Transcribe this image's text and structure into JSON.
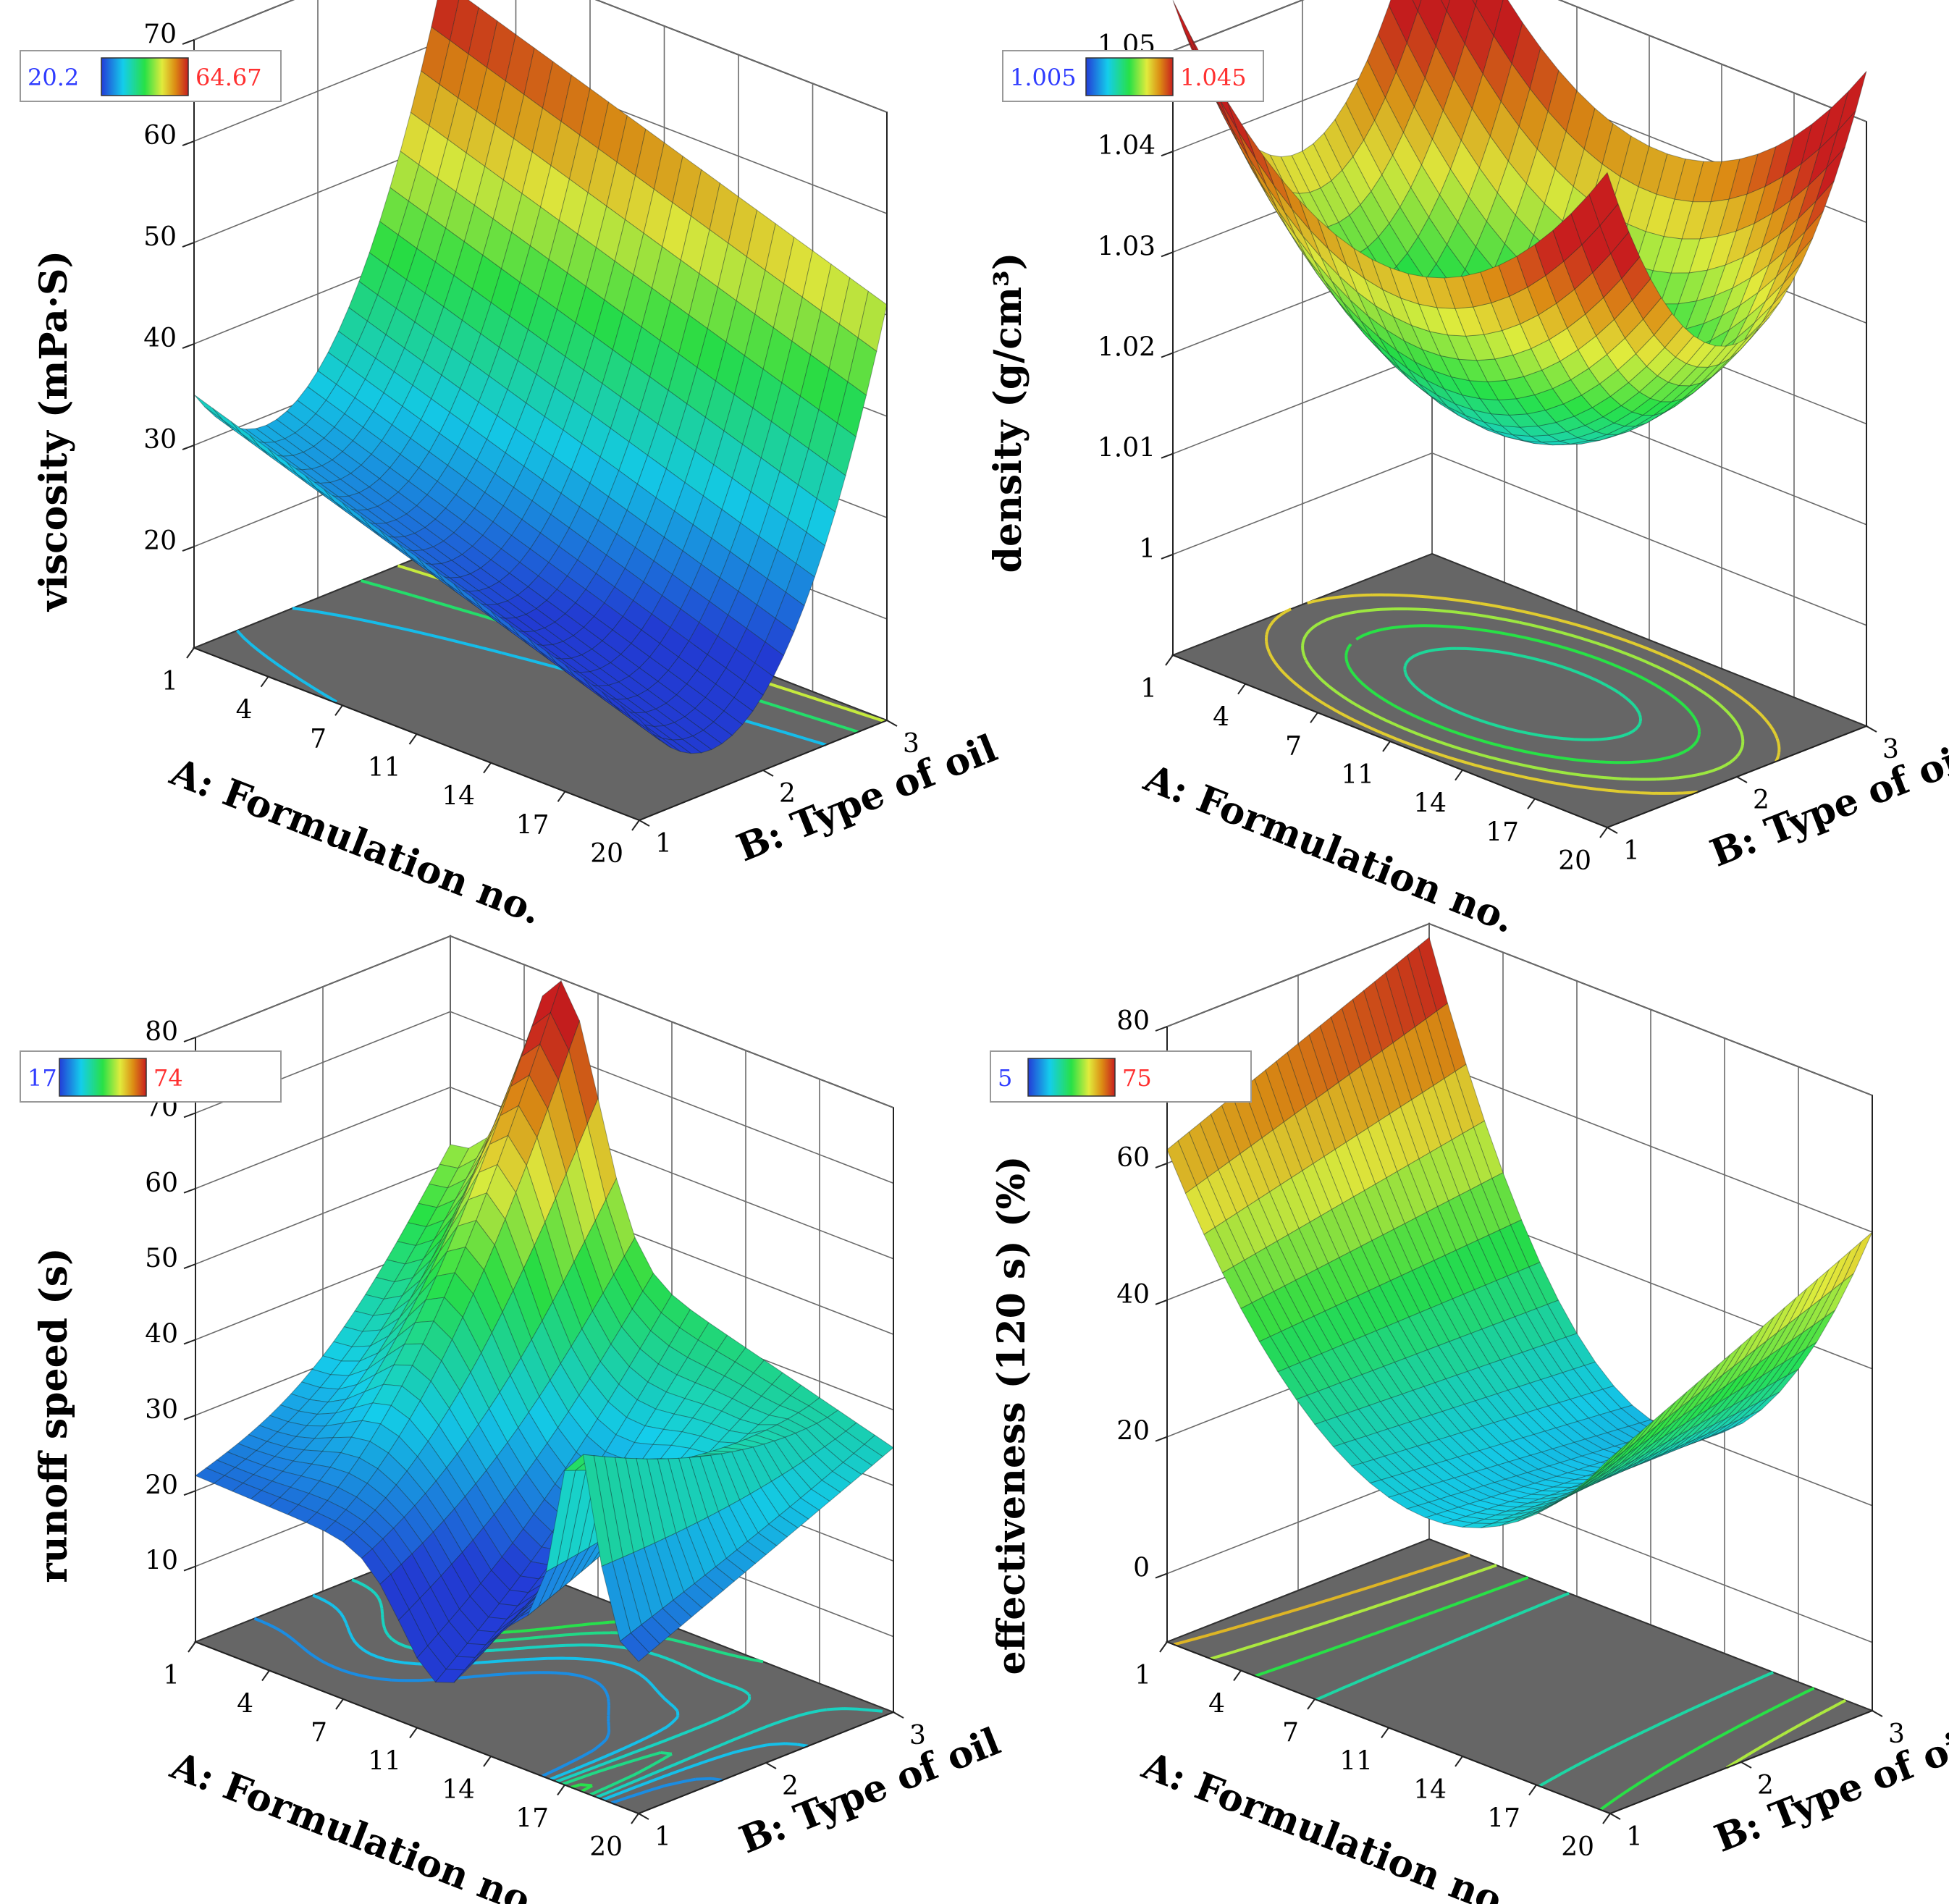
{
  "chart_data": [
    {
      "type": "surface3d",
      "xlabel": "A: Formulation no.",
      "ylabel": "B: Type of oil",
      "zlabel": "viscosity (mPa·S)",
      "x_ticks": [
        "1",
        "4",
        "7",
        "11",
        "14",
        "17",
        "20"
      ],
      "y_ticks": [
        "1",
        "2",
        "3"
      ],
      "z_ticks": [
        "20",
        "30",
        "40",
        "50",
        "60",
        "70"
      ],
      "xlim": [
        1,
        20
      ],
      "ylim": [
        1,
        3
      ],
      "zlim": [
        10,
        70
      ],
      "legend": {
        "min": "20.2",
        "max": "64.67"
      },
      "color_range": [
        20.2,
        64.67
      ],
      "surface": {
        "model": "quadratic",
        "corners": {
          "a1_b1": 35,
          "a20_b1": 20,
          "a1_b3": 66,
          "a20_b3": 51
        },
        "min_value": 21
      },
      "contour_levels": [
        30,
        40,
        50
      ]
    },
    {
      "type": "surface3d",
      "xlabel": "A: Formulation no.",
      "ylabel": "B: Type of oil",
      "zlabel": "density (g/cm³)",
      "x_ticks": [
        "1",
        "4",
        "7",
        "11",
        "14",
        "17",
        "20"
      ],
      "y_ticks": [
        "1",
        "2",
        "3"
      ],
      "z_ticks": [
        "1",
        "1.01",
        "1.02",
        "1.03",
        "1.04",
        "1.05"
      ],
      "xlim": [
        1,
        20
      ],
      "ylim": [
        1,
        3
      ],
      "zlim": [
        0.99,
        1.05
      ],
      "legend": {
        "min": "1.005",
        "max": "1.045"
      },
      "color_range": [
        1.005,
        1.045
      ],
      "surface": {
        "model": "bowl",
        "center": [
          10.5,
          2
        ],
        "min_value": 1.015,
        "corners": {
          "a1_b1": 1.033,
          "a20_b1": 1.033,
          "a1_b3": 1.045,
          "a20_b3": 1.04
        }
      },
      "contour_levels": [
        1.02,
        1.025,
        1.03,
        1.035
      ]
    },
    {
      "type": "surface3d",
      "xlabel": "A: Formulation no.",
      "ylabel": "B: Type of oil",
      "zlabel": "runoff speed (s)",
      "x_ticks": [
        "1",
        "4",
        "7",
        "11",
        "14",
        "17",
        "20"
      ],
      "y_ticks": [
        "1",
        "2",
        "3"
      ],
      "z_ticks": [
        "10",
        "20",
        "30",
        "40",
        "50",
        "60",
        "70",
        "80"
      ],
      "xlim": [
        1,
        20
      ],
      "ylim": [
        1,
        3
      ],
      "zlim": [
        0,
        80
      ],
      "legend": {
        "min": "17",
        "max": "74"
      },
      "color_range": [
        17,
        74
      ],
      "surface": {
        "model": "wave",
        "corners": {
          "a1_b1": 22,
          "a20_b1": 20,
          "a1_b3": 52,
          "a20_b3": 35
        },
        "ridge_peak": 72,
        "valley_min": 18
      },
      "contour_levels": [
        25,
        30,
        35,
        40,
        45
      ]
    },
    {
      "type": "surface3d",
      "xlabel": "A: Formulation no.",
      "ylabel": "B: Type of oil",
      "zlabel": "effectiveness (120 s) (%)",
      "x_ticks": [
        "1",
        "4",
        "7",
        "11",
        "14",
        "17",
        "20"
      ],
      "y_ticks": [
        "1",
        "2",
        "3"
      ],
      "z_ticks": [
        "0",
        "20",
        "40",
        "60",
        "80"
      ],
      "xlim": [
        1,
        20
      ],
      "ylim": [
        1,
        3
      ],
      "zlim": [
        -10,
        80
      ],
      "legend": {
        "min": "5",
        "max": "75"
      },
      "color_range": [
        5,
        75
      ],
      "surface": {
        "model": "saddle",
        "corners": {
          "a1_b1": 62,
          "a20_b1": 30,
          "a1_b3": 78,
          "a20_b3": 48
        },
        "min_value": 21
      },
      "contour_levels": [
        30,
        40,
        50,
        60
      ]
    }
  ]
}
